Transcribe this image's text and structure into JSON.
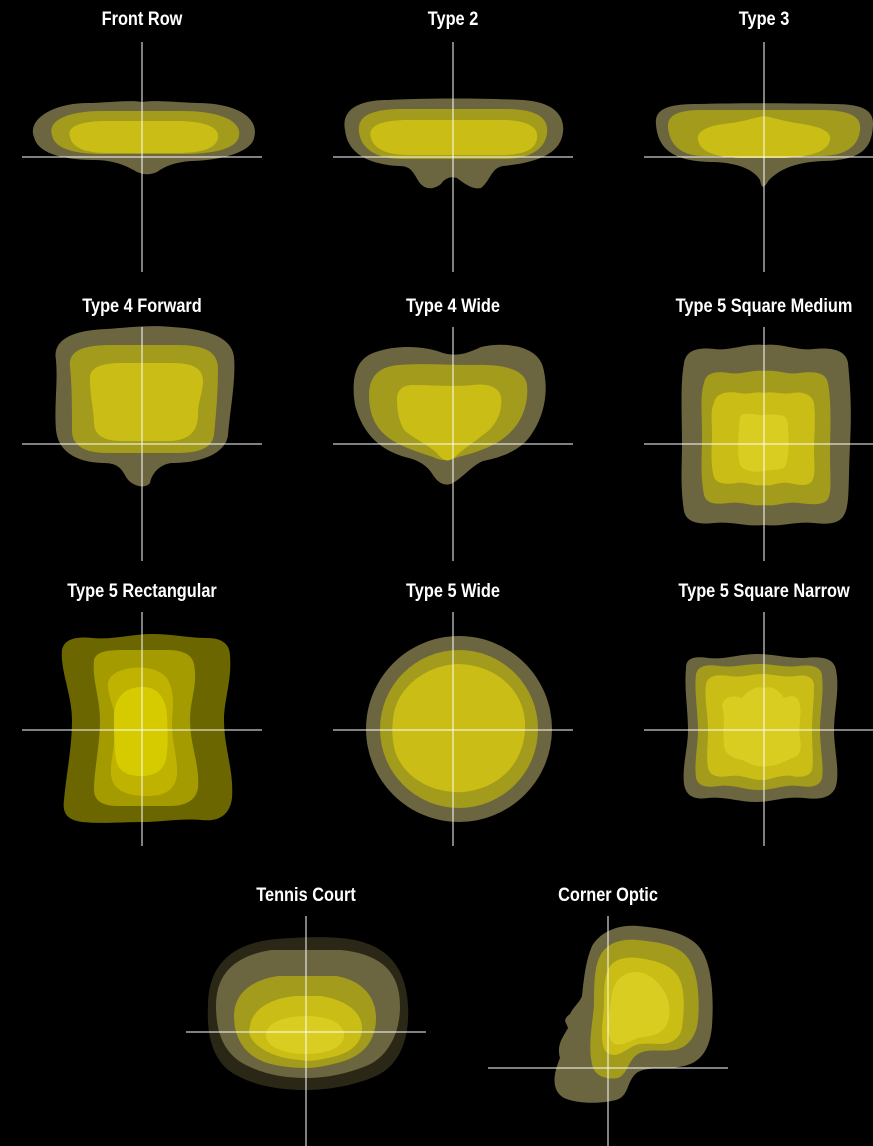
{
  "colors": {
    "background": "#000000",
    "title": "#ffffff",
    "axis": "#ffffff",
    "outer_zone": "#6b6540",
    "middle_zone": "#a39b1c",
    "inner_zone": "#c9bd16",
    "core_zone": "#d8cd20"
  },
  "panels": [
    {
      "title": "Front Row"
    },
    {
      "title": "Type 2"
    },
    {
      "title": "Type 3"
    },
    {
      "title": "Type 4 Forward"
    },
    {
      "title": "Type 4 Wide"
    },
    {
      "title": "Type 5 Square Medium"
    },
    {
      "title": "Type 5 Rectangular"
    },
    {
      "title": "Type 5 Wide"
    },
    {
      "title": "Type 5 Square Narrow"
    },
    {
      "title": "Tennis Court"
    },
    {
      "title": "Corner Optic"
    }
  ]
}
